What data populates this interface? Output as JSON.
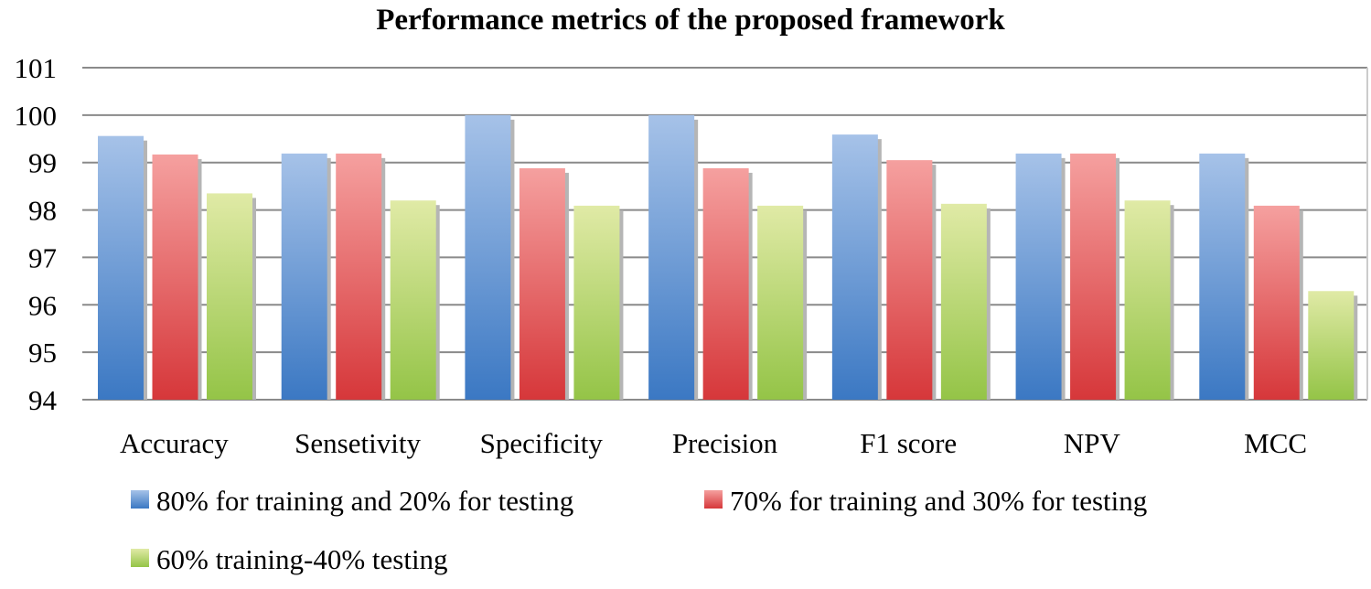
{
  "chart_data": {
    "type": "bar",
    "title": "Performance metrics of the proposed  framework",
    "xlabel": "",
    "ylabel": "",
    "ylim": [
      94,
      101
    ],
    "yticks": [
      94,
      95,
      96,
      97,
      98,
      99,
      100,
      101
    ],
    "grid": true,
    "legend_placement": "bottom",
    "categories": [
      "Accuracy",
      "Sensetivity",
      "Specificity",
      "Precision",
      "F1 score",
      "NPV",
      "MCC"
    ],
    "series": [
      {
        "name": "80% for  training and 20% for testing",
        "color": "#4f86c9",
        "values": [
          99.56,
          99.19,
          100.0,
          100.0,
          99.59,
          99.19,
          99.19
        ]
      },
      {
        "name": "70% for  training and 30%  for testing",
        "color": "#d94446",
        "values": [
          99.17,
          99.19,
          98.88,
          98.88,
          99.05,
          99.19,
          98.09
        ]
      },
      {
        "name": "60% training-40% testing",
        "color": "#9cc94f",
        "values": [
          98.35,
          98.2,
          98.09,
          98.09,
          98.13,
          98.2,
          96.29
        ]
      }
    ]
  }
}
